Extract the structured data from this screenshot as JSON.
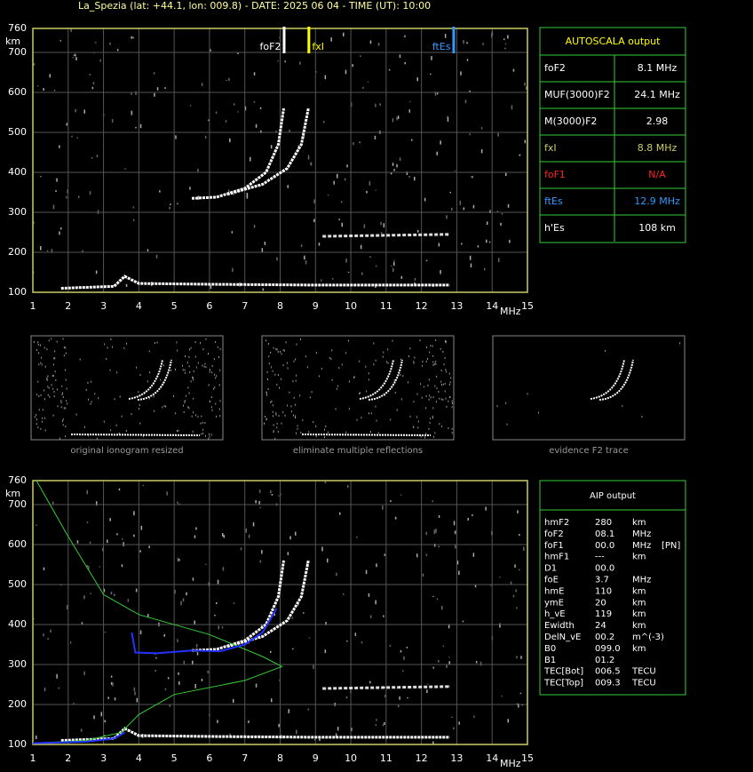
{
  "header": {
    "title": "La_Spezia (lat: +44.1, lon: 009.8) - DATE: 2025 06 04 - TIME (UT): 10:00"
  },
  "ionogram": {
    "xlim": [
      1,
      15
    ],
    "ylim": [
      100,
      760
    ],
    "xticks": [
      1,
      2,
      3,
      4,
      5,
      6,
      7,
      8,
      9,
      10,
      11,
      12,
      13,
      14,
      15
    ],
    "yticks": [
      100,
      200,
      300,
      400,
      500,
      600,
      700,
      760
    ],
    "xlabel": "MHz",
    "ylabel": "km",
    "markers": [
      {
        "label": "foF2",
        "freq": 8.1,
        "color": "#ffffff"
      },
      {
        "label": "fxI",
        "freq": 8.8,
        "color": "#ffff00"
      },
      {
        "label": "ftEs",
        "freq": 12.9,
        "color": "#3399ff"
      }
    ]
  },
  "autoscala": {
    "title": "AUTOSCALA output",
    "rows": [
      [
        "foF2",
        "8.1  MHz"
      ],
      [
        "MUF(3000)F2",
        "24.1  MHz"
      ],
      [
        "M(3000)F2",
        "2.98"
      ],
      [
        "fxI",
        "8.8  MHz"
      ],
      [
        "foF1",
        "N/A"
      ],
      [
        "ftEs",
        "12.9  MHz"
      ],
      [
        "h'Es",
        "108     km"
      ]
    ]
  },
  "thumbnails": [
    "original ionogram resized",
    "eliminate multiple reflections",
    "evidence F2 trace"
  ],
  "aip": {
    "title": "AIP output",
    "rows": [
      [
        "hmF2",
        "280",
        "km"
      ],
      [
        "foF2",
        "08.1",
        "MHz"
      ],
      [
        "foF1",
        "00.0",
        "MHz",
        "[PN]"
      ],
      [
        "hmF1",
        "---",
        "km"
      ],
      [
        "D1",
        "00.0"
      ],
      [
        "foE",
        "3.7",
        "MHz"
      ],
      [
        "hmE",
        "110",
        "km"
      ],
      [
        "ymE",
        "20",
        "km"
      ],
      [
        "h_vE",
        "119",
        "km"
      ],
      [
        "Ewidth",
        "24",
        "km"
      ],
      [
        "DelN_vE",
        "00.2",
        "m^(-3)"
      ],
      [
        "B0",
        "099.0",
        "km"
      ],
      [
        "B1",
        "01.2"
      ],
      [
        "TEC[Bot]",
        "006.5",
        "TECU"
      ],
      [
        "TEC[Top]",
        "009.3",
        "TECU"
      ]
    ]
  }
}
